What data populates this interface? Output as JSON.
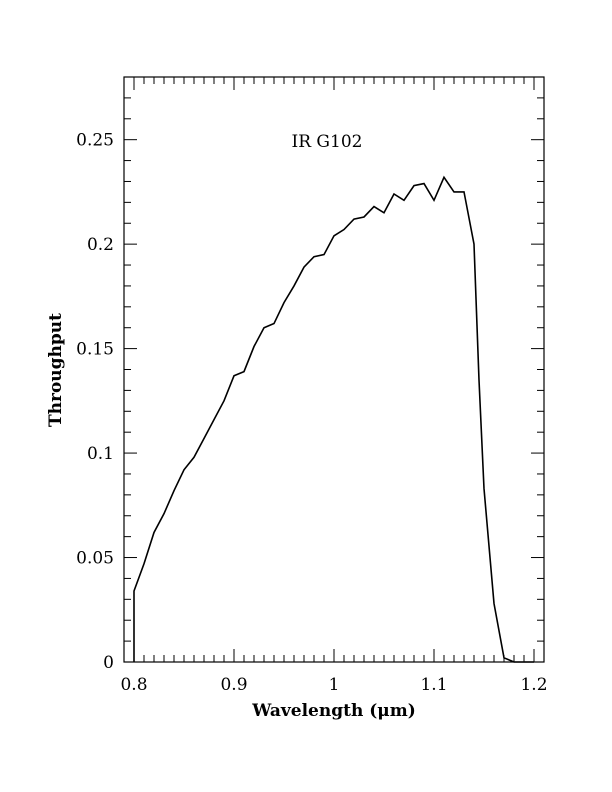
{
  "chart_data": {
    "type": "line",
    "title": "",
    "annotation": "IR G102",
    "xlabel": "Wavelength (μm)",
    "ylabel": "Throughput",
    "xlim": [
      0.79,
      1.21
    ],
    "ylim": [
      0,
      0.28
    ],
    "xticks": [
      0.8,
      0.9,
      1.0,
      1.1,
      1.2
    ],
    "xtick_labels": [
      "0.8",
      "0.9",
      "1",
      "1.1",
      "1.2"
    ],
    "yticks": [
      0,
      0.05,
      0.1,
      0.15,
      0.2,
      0.25
    ],
    "ytick_labels": [
      "0",
      "0.05",
      "0.1",
      "0.15",
      "0.2",
      "0.25"
    ],
    "grid": false,
    "legend": "none",
    "line_color": "#000000",
    "series": [
      {
        "x": [
          0.8,
          0.8,
          0.81,
          0.82,
          0.83,
          0.84,
          0.85,
          0.86,
          0.87,
          0.88,
          0.89,
          0.9,
          0.91,
          0.92,
          0.93,
          0.94,
          0.95,
          0.96,
          0.97,
          0.98,
          0.99,
          1.0,
          1.01,
          1.02,
          1.03,
          1.04,
          1.05,
          1.06,
          1.07,
          1.08,
          1.09,
          1.1,
          1.11,
          1.12,
          1.13,
          1.14,
          1.145,
          1.15,
          1.16,
          1.17,
          1.18,
          1.19,
          1.2
        ],
        "y": [
          0,
          0.034,
          0.047,
          0.062,
          0.071,
          0.082,
          0.092,
          0.098,
          0.107,
          0.116,
          0.125,
          0.137,
          0.139,
          0.151,
          0.16,
          0.162,
          0.172,
          0.18,
          0.189,
          0.194,
          0.195,
          0.204,
          0.207,
          0.212,
          0.213,
          0.218,
          0.215,
          0.224,
          0.221,
          0.228,
          0.229,
          0.221,
          0.232,
          0.225,
          0.225,
          0.2,
          0.135,
          0.083,
          0.028,
          0.002,
          0.0,
          0.0,
          0.0
        ]
      }
    ]
  }
}
